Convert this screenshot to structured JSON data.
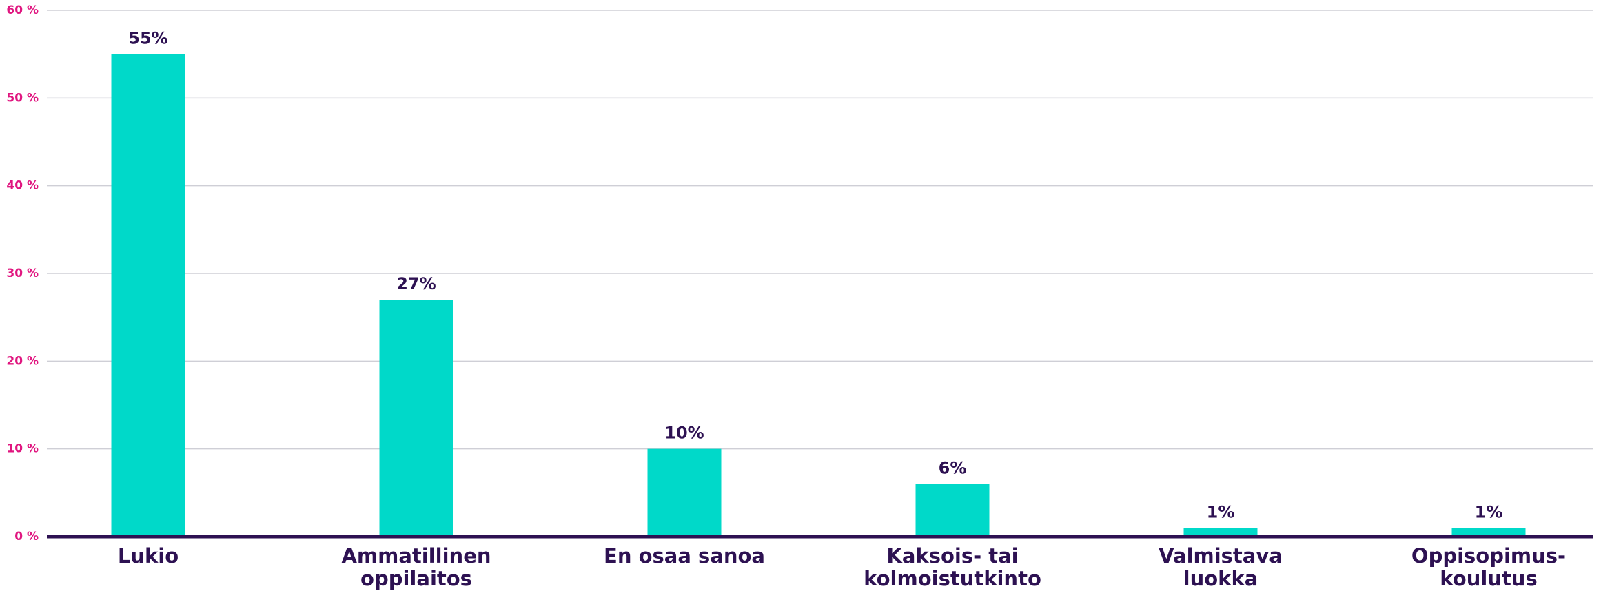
{
  "chart_data": {
    "type": "bar",
    "categories": [
      [
        "Lukio"
      ],
      [
        "Ammatillinen",
        "oppilaitos"
      ],
      [
        "En osaa sanoa"
      ],
      [
        "Kaksois- tai",
        "kolmoistutkinto"
      ],
      [
        "Valmistava",
        "luokka"
      ],
      [
        "Oppisopimus-",
        "koulutus"
      ]
    ],
    "values": [
      55,
      27,
      10,
      6,
      1,
      1
    ],
    "value_labels": [
      "55%",
      "27%",
      "10%",
      "6%",
      "1%",
      "1%"
    ],
    "color": "#00d9c9",
    "ylim": [
      0,
      60
    ],
    "yticks": [
      {
        "value": 0,
        "label": "0 %"
      },
      {
        "value": 10,
        "label": "10 %"
      },
      {
        "value": 20,
        "label": "20 %"
      },
      {
        "value": 30,
        "label": "30 %"
      },
      {
        "value": 40,
        "label": "40 %"
      },
      {
        "value": 50,
        "label": "50 %"
      },
      {
        "value": 60,
        "label": "60 %"
      }
    ],
    "grid": true
  }
}
